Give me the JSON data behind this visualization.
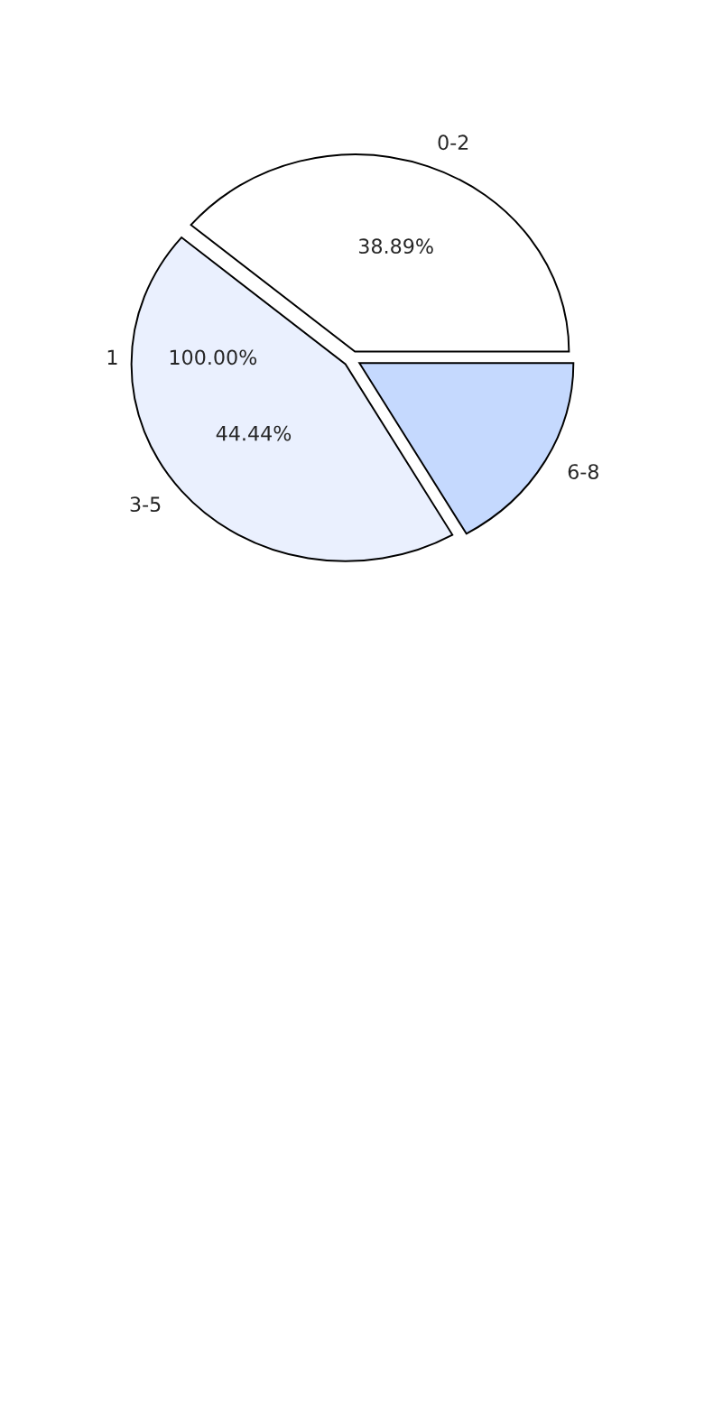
{
  "chart_data": {
    "type": "pie",
    "categories": [
      "0-2",
      "3-5",
      "6-8"
    ],
    "values": [
      38.89,
      44.44,
      16.67
    ],
    "colors": [
      "#ffffff",
      "#eaf0fe",
      "#c5d9fe"
    ],
    "value_labels": [
      "38.89%",
      "44.44%",
      null
    ],
    "annotations": [
      "1",
      "100.00%"
    ]
  }
}
